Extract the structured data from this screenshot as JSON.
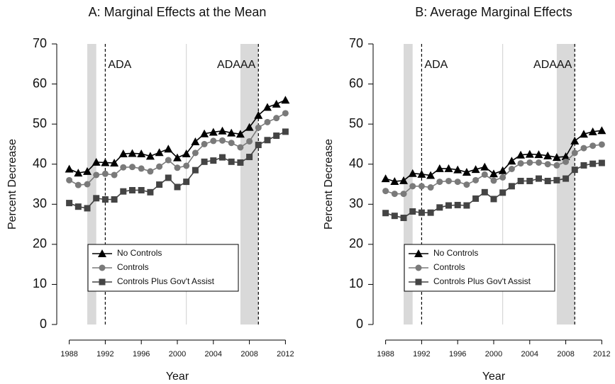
{
  "chart_data": [
    {
      "type": "line",
      "title": "A: Marginal Effects at the Mean",
      "x_label": "Year",
      "y_label": "Percent Decrease",
      "x": [
        1988,
        1989,
        1990,
        1991,
        1992,
        1993,
        1994,
        1995,
        1996,
        1997,
        1998,
        1999,
        2000,
        2001,
        2002,
        2003,
        2004,
        2005,
        2006,
        2007,
        2008,
        2009,
        2010,
        2011,
        2012
      ],
      "xlim": [
        1987.4,
        2012.6
      ],
      "xticks": [
        1988,
        1992,
        1996,
        2000,
        2004,
        2008,
        2012
      ],
      "ylim": [
        0,
        70
      ],
      "yticks": [
        0,
        10,
        20,
        30,
        40,
        50,
        60,
        70
      ],
      "legend": "lower left",
      "shaded_regions": [
        [
          1990,
          1991
        ],
        [
          2007,
          2009
        ]
      ],
      "reference_lines": [
        2001
      ],
      "event_lines": [
        {
          "x": 1992,
          "label": "ADA"
        },
        {
          "x": 2009,
          "label": "ADAAA"
        }
      ],
      "series": [
        {
          "name": "No Controls",
          "color": "#000000",
          "marker": "triangle",
          "values": [
            38.8,
            37.8,
            38.2,
            40.5,
            40.4,
            40.3,
            42.6,
            42.7,
            42.6,
            42.0,
            42.9,
            43.8,
            41.6,
            42.6,
            45.6,
            47.6,
            48.0,
            48.3,
            47.8,
            47.5,
            49.2,
            52.2,
            54.2,
            55.0,
            56.0
          ]
        },
        {
          "name": "Controls",
          "color": "#7a7a7a",
          "marker": "circle",
          "values": [
            36.0,
            34.8,
            35.0,
            37.3,
            37.6,
            37.3,
            39.2,
            39.3,
            38.9,
            38.2,
            39.4,
            41.0,
            39.1,
            39.6,
            42.8,
            45.0,
            45.8,
            45.9,
            45.3,
            44.2,
            45.7,
            49.1,
            50.5,
            51.5,
            52.7
          ]
        },
        {
          "name": "Controls Plus Gov't Assist",
          "color": "#444444",
          "marker": "square",
          "values": [
            30.3,
            29.4,
            29.0,
            31.5,
            31.2,
            31.2,
            33.2,
            33.5,
            33.5,
            33.0,
            34.9,
            36.6,
            34.3,
            35.6,
            38.5,
            40.6,
            40.9,
            41.7,
            40.6,
            40.4,
            41.8,
            44.8,
            46.0,
            47.1,
            48.1
          ]
        }
      ]
    },
    {
      "type": "line",
      "title": "B: Average Marginal Effects",
      "x_label": "Year",
      "y_label": "Percent Decrease",
      "x": [
        1988,
        1989,
        1990,
        1991,
        1992,
        1993,
        1994,
        1995,
        1996,
        1997,
        1998,
        1999,
        2000,
        2001,
        2002,
        2003,
        2004,
        2005,
        2006,
        2007,
        2008,
        2009,
        2010,
        2011,
        2012
      ],
      "xlim": [
        1987.4,
        2012.6
      ],
      "xticks": [
        1988,
        1992,
        1996,
        2000,
        2004,
        2008,
        2012
      ],
      "ylim": [
        0,
        70
      ],
      "yticks": [
        0,
        10,
        20,
        30,
        40,
        50,
        60,
        70
      ],
      "legend": "lower left",
      "shaded_regions": [
        [
          1990,
          1991
        ],
        [
          2007,
          2009
        ]
      ],
      "reference_lines": [
        2001
      ],
      "event_lines": [
        {
          "x": 1992,
          "label": "ADA"
        },
        {
          "x": 2009,
          "label": "ADAAA"
        }
      ],
      "series": [
        {
          "name": "No Controls",
          "color": "#000000",
          "marker": "triangle",
          "values": [
            36.4,
            35.7,
            35.9,
            37.7,
            37.5,
            37.2,
            38.9,
            38.9,
            38.6,
            38.0,
            38.7,
            39.3,
            37.6,
            38.4,
            40.8,
            42.3,
            42.5,
            42.4,
            42.1,
            41.7,
            41.9,
            45.8,
            47.5,
            48.1,
            48.4
          ]
        },
        {
          "name": "Controls",
          "color": "#7a7a7a",
          "marker": "circle",
          "values": [
            33.3,
            32.6,
            32.6,
            34.5,
            34.5,
            34.2,
            35.6,
            35.8,
            35.6,
            34.9,
            36.0,
            37.4,
            35.9,
            36.7,
            38.8,
            40.2,
            40.4,
            40.4,
            40.0,
            39.7,
            40.6,
            42.8,
            44.0,
            44.6,
            44.9
          ]
        },
        {
          "name": "Controls Plus Gov't Assist",
          "color": "#444444",
          "marker": "square",
          "values": [
            27.8,
            27.1,
            26.6,
            28.2,
            27.9,
            27.9,
            29.2,
            29.7,
            29.8,
            29.7,
            31.4,
            33.0,
            31.3,
            32.9,
            34.5,
            35.8,
            35.8,
            36.4,
            35.8,
            36.0,
            36.4,
            38.6,
            39.7,
            40.1,
            40.3
          ]
        }
      ]
    }
  ]
}
